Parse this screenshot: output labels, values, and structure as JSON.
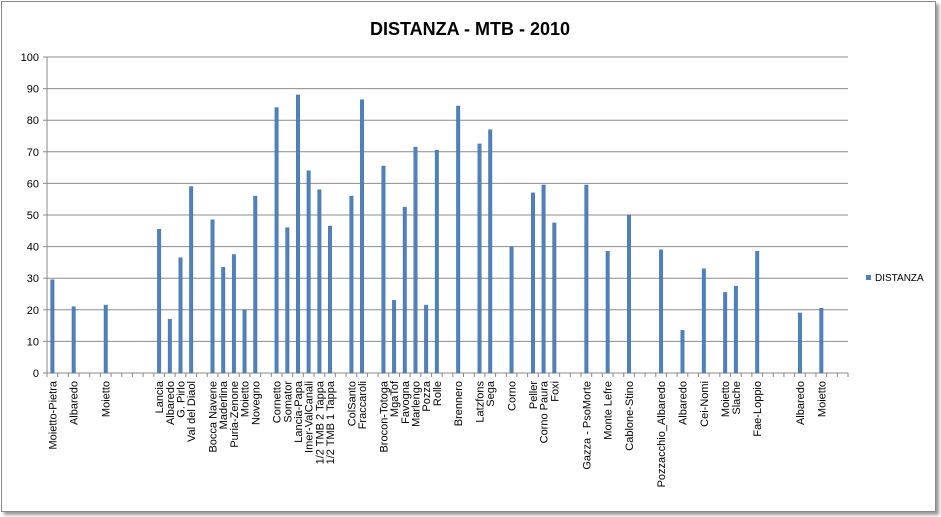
{
  "chart_data": {
    "type": "bar",
    "title": "DISTANZA - MTB - 2010",
    "xlabel": "",
    "ylabel": "",
    "ylim": [
      0,
      100
    ],
    "yticks": [
      0,
      10,
      20,
      30,
      40,
      50,
      60,
      70,
      80,
      90,
      100
    ],
    "grid": true,
    "legend": {
      "position": "right",
      "entries": [
        "DISTANZA"
      ]
    },
    "bar_color": "#4F81BD",
    "categories": [
      "Moietto-Pietra",
      "",
      "Albaredo",
      "",
      "",
      "Moietto",
      "",
      "",
      "",
      "",
      "Lancia",
      "Albaredo",
      "G. Pirlo",
      "Val del Diaol",
      "",
      "Bocca Navene",
      "Maderlina",
      "Puria-Zenone",
      "Moietto",
      "Novegno",
      "",
      "Cornetto",
      "Somator",
      "Lancia-Papa",
      "Imer-ValCanali",
      "1/2 TMB 2 Tappa",
      "1/2 TMB 1 Tappa",
      "",
      "ColSanto",
      "Fraccaroli",
      "",
      "Brocon-Totoga",
      "MgaTof",
      "Favogna",
      "Marlengo",
      "Pozza",
      "Rolle",
      "",
      "Brennero",
      "",
      "Latzfons",
      "Sega",
      "",
      "Corno",
      "",
      "Peller",
      "Corno Paura",
      "Foxi",
      "",
      "",
      "Gazza - PsoMorte",
      "",
      "Monte Lefre",
      "",
      "Cablone-Stino",
      "",
      "",
      "Pozzacchio_Albaredo",
      "",
      "Albaredo",
      "",
      "Cei-Nomi",
      "",
      "Moietto",
      "Slache",
      "",
      "Fae-Loppio",
      "",
      "",
      "",
      "Albaredo",
      "",
      "Moietto",
      "",
      ""
    ],
    "series": [
      {
        "name": "DISTANZA",
        "values": [
          29.5,
          null,
          21,
          null,
          null,
          21.5,
          null,
          null,
          null,
          null,
          45.5,
          17,
          36.5,
          59,
          null,
          48.5,
          33.5,
          37.5,
          20,
          56,
          null,
          84,
          46,
          88,
          64,
          58,
          46.5,
          null,
          56,
          86.5,
          null,
          65.5,
          23,
          52.5,
          71.5,
          21.5,
          70.5,
          null,
          84.5,
          null,
          72.5,
          77,
          null,
          40,
          null,
          57,
          59.5,
          47.5,
          null,
          null,
          59.5,
          null,
          38.5,
          null,
          50,
          null,
          null,
          39,
          null,
          13.5,
          null,
          33,
          null,
          25.5,
          27.5,
          null,
          38.5,
          null,
          null,
          null,
          19,
          null,
          20.5,
          null,
          null
        ]
      }
    ]
  }
}
